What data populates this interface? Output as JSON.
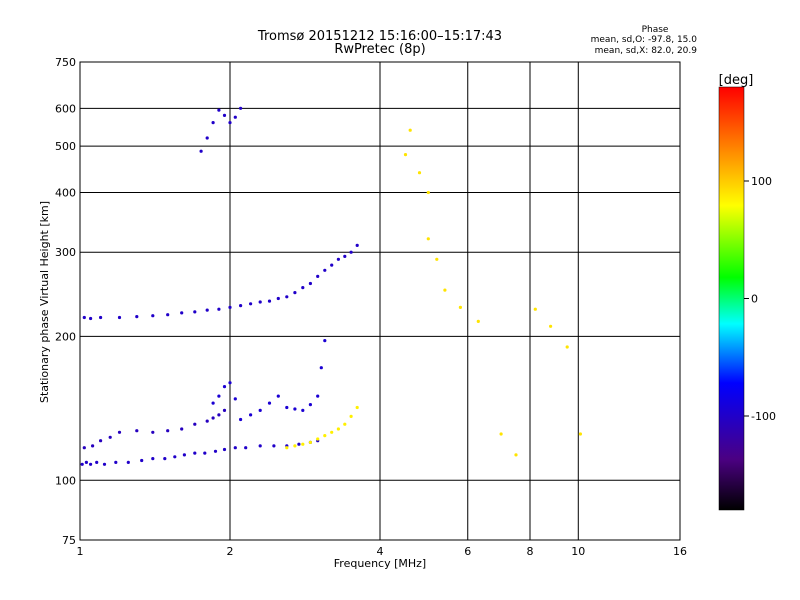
{
  "chart_data": {
    "type": "scatter",
    "title": "Tromsø 20151212 15:16:00–15:17:43",
    "subtitle": "RwPretec (8p)",
    "xlabel": "Frequency [MHz]",
    "ylabel": "Stationary phase Virtual Height [km]",
    "xscale": "log",
    "yscale": "log",
    "xlim": [
      1,
      16
    ],
    "ylim": [
      75,
      750
    ],
    "xticks": [
      1,
      2,
      4,
      6,
      8,
      10,
      16
    ],
    "yticks": [
      75,
      100,
      200,
      300,
      400,
      500,
      600,
      750
    ],
    "grid": true,
    "stats_box": {
      "title": "Phase",
      "line1": "mean, sd,O: -97.8, 15.0",
      "line2": "mean, sd,X:  82.0, 20.9"
    },
    "colorbar": {
      "label": "[deg]",
      "range": [
        -180,
        180
      ],
      "ticks": [
        100,
        0,
        -100
      ]
    },
    "series": [
      {
        "x": [
          1.01,
          1.03,
          1.05,
          1.08,
          1.12,
          1.18,
          1.25,
          1.33,
          1.4,
          1.48,
          1.55,
          1.62,
          1.7,
          1.78,
          1.87,
          1.95,
          2.05,
          2.15,
          2.3,
          2.45,
          2.6,
          2.75,
          2.9,
          3.0
        ],
        "y": [
          108,
          109,
          108,
          109,
          108,
          109,
          109,
          110,
          111,
          111,
          112,
          113,
          114,
          114,
          115,
          116,
          117,
          117,
          118,
          118,
          118,
          119,
          120,
          121
        ],
        "phase": -100
      },
      {
        "x": [
          1.02,
          1.06,
          1.1,
          1.15,
          1.2,
          1.3,
          1.4,
          1.5,
          1.6,
          1.7,
          1.8,
          1.85,
          1.9,
          1.95
        ],
        "y": [
          117,
          118,
          121,
          123,
          126,
          127,
          126,
          127,
          128,
          131,
          133,
          135,
          137,
          140
        ],
        "phase": -105
      },
      {
        "x": [
          1.85,
          1.9,
          1.95,
          2.0,
          2.05,
          2.1,
          2.2,
          2.3,
          2.4,
          2.5,
          2.6,
          2.7,
          2.8,
          2.9,
          3.0,
          3.05,
          3.1
        ],
        "y": [
          145,
          150,
          157,
          160,
          148,
          134,
          137,
          140,
          145,
          150,
          142,
          141,
          140,
          144,
          150,
          172,
          196
        ],
        "phase": -95
      },
      {
        "x": [
          1.02,
          1.05,
          1.1,
          1.2,
          1.3,
          1.4,
          1.5,
          1.6,
          1.7,
          1.8,
          1.9,
          2.0,
          2.1,
          2.2,
          2.3,
          2.4,
          2.5,
          2.6,
          2.7,
          2.8,
          2.9,
          3.0,
          3.1,
          3.2,
          3.3,
          3.4,
          3.5,
          3.6
        ],
        "y": [
          219,
          218,
          219,
          219,
          220,
          221,
          222,
          224,
          225,
          227,
          228,
          230,
          232,
          234,
          236,
          237,
          240,
          242,
          247,
          253,
          258,
          267,
          275,
          282,
          290,
          294,
          300,
          310
        ],
        "phase": -100
      },
      {
        "x": [
          1.75,
          1.8,
          1.85,
          1.9,
          1.95,
          2.0,
          2.05,
          2.1
        ],
        "y": [
          488,
          520,
          560,
          595,
          580,
          560,
          575,
          600
        ],
        "phase": -100
      },
      {
        "x": [
          2.6,
          2.7,
          2.8,
          2.9,
          3.0,
          3.1,
          3.2,
          3.3,
          3.4,
          3.5,
          3.6
        ],
        "y": [
          117,
          118,
          119,
          120,
          122,
          124,
          126,
          128,
          131,
          136,
          142
        ],
        "phase": 85
      },
      {
        "x": [
          4.5,
          4.6,
          4.8,
          5.0,
          5.0,
          5.2,
          5.4,
          5.8,
          6.3,
          7.0,
          7.5,
          8.2,
          8.8,
          9.5,
          10.1
        ],
        "y": [
          480,
          540,
          440,
          400,
          320,
          290,
          250,
          230,
          215,
          125,
          113,
          228,
          210,
          190,
          125
        ],
        "phase": 90
      }
    ]
  }
}
